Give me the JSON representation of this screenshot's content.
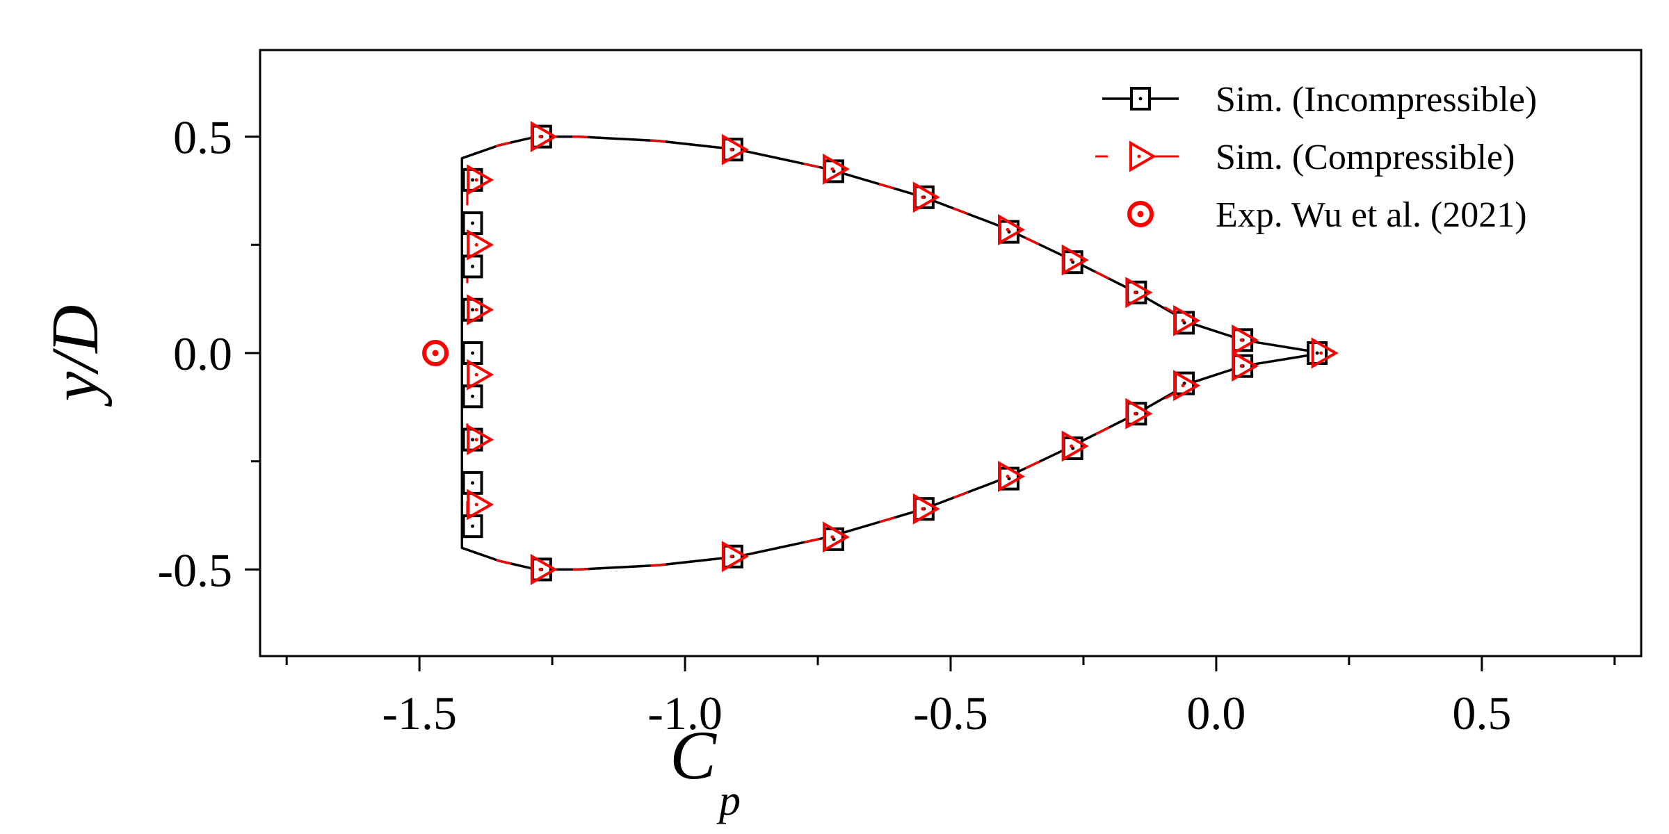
{
  "chart_data": {
    "type": "line",
    "title": "",
    "xlabel": "C",
    "xlabel_sub": "p",
    "ylabel": "y/D",
    "xlim": [
      -1.8,
      0.8
    ],
    "ylim": [
      -0.7,
      0.7
    ],
    "x_major_ticks": [
      -1.5,
      -1.0,
      -0.5,
      0.0,
      0.5
    ],
    "x_tick_labels": [
      "-1.5",
      "-1.0",
      "-0.5",
      "0.0",
      "0.5"
    ],
    "x_minor_ticks": [
      -1.75,
      -1.25,
      -0.75,
      -0.25,
      0.25,
      0.75
    ],
    "y_major_ticks": [
      0.5,
      0.0,
      -0.5
    ],
    "y_tick_labels": [
      "0.5",
      "0.0",
      "-0.5"
    ],
    "y_minor_ticks": [
      0.25,
      -0.25
    ],
    "grid": false,
    "legend_position": "top-right",
    "colors": {
      "incompressible": "#000000",
      "compressible": "#ff0000",
      "experiment": "#ff0000"
    },
    "series": [
      {
        "name": "Sim. (Incompressible)",
        "marker": "square",
        "line": "solid",
        "curve": [
          [
            0.2,
            0.0
          ],
          [
            0.05,
            0.03
          ],
          [
            -0.05,
            0.07
          ],
          [
            -0.15,
            0.14
          ],
          [
            -0.28,
            0.22
          ],
          [
            -0.4,
            0.29
          ],
          [
            -0.55,
            0.36
          ],
          [
            -0.73,
            0.425
          ],
          [
            -0.9,
            0.47
          ],
          [
            -1.05,
            0.49
          ],
          [
            -1.2,
            0.5
          ],
          [
            -1.28,
            0.5
          ],
          [
            -1.35,
            0.48
          ],
          [
            -1.42,
            0.45
          ],
          [
            -1.42,
            -0.45
          ],
          [
            -1.35,
            -0.48
          ],
          [
            -1.28,
            -0.5
          ],
          [
            -1.2,
            -0.5
          ],
          [
            -1.05,
            -0.49
          ],
          [
            -0.9,
            -0.47
          ],
          [
            -0.73,
            -0.425
          ],
          [
            -0.55,
            -0.36
          ],
          [
            -0.4,
            -0.29
          ],
          [
            -0.28,
            -0.22
          ],
          [
            -0.15,
            -0.14
          ],
          [
            -0.05,
            -0.07
          ],
          [
            0.05,
            -0.03
          ],
          [
            0.2,
            0.0
          ]
        ],
        "markers": [
          [
            0.19,
            0.0
          ],
          [
            0.05,
            0.03
          ],
          [
            0.05,
            -0.03
          ],
          [
            -0.06,
            0.07
          ],
          [
            -0.06,
            -0.07
          ],
          [
            -0.15,
            0.14
          ],
          [
            -0.15,
            -0.14
          ],
          [
            -0.27,
            0.21
          ],
          [
            -0.27,
            -0.22
          ],
          [
            -0.39,
            0.28
          ],
          [
            -0.39,
            -0.29
          ],
          [
            -0.55,
            0.36
          ],
          [
            -0.55,
            -0.36
          ],
          [
            -0.72,
            0.42
          ],
          [
            -0.72,
            -0.43
          ],
          [
            -0.91,
            0.47
          ],
          [
            -0.91,
            -0.47
          ],
          [
            -1.27,
            0.5
          ],
          [
            -1.27,
            -0.5
          ],
          [
            -1.4,
            0.4
          ],
          [
            -1.4,
            0.3
          ],
          [
            -1.4,
            0.2
          ],
          [
            -1.4,
            0.1
          ],
          [
            -1.4,
            0.0
          ],
          [
            -1.4,
            -0.1
          ],
          [
            -1.4,
            -0.2
          ],
          [
            -1.4,
            -0.3
          ],
          [
            -1.4,
            -0.4
          ]
        ]
      },
      {
        "name": "Sim. (Compressible)",
        "marker": "triangle-right",
        "line": "dashed",
        "curve": [
          [
            0.21,
            0.0
          ],
          [
            0.05,
            0.03
          ],
          [
            -0.05,
            0.075
          ],
          [
            -0.15,
            0.14
          ],
          [
            -0.28,
            0.22
          ],
          [
            -0.4,
            0.29
          ],
          [
            -0.55,
            0.36
          ],
          [
            -0.73,
            0.425
          ],
          [
            -0.9,
            0.47
          ],
          [
            -1.05,
            0.49
          ],
          [
            -1.2,
            0.5
          ],
          [
            -1.28,
            0.5
          ],
          [
            -1.35,
            0.48
          ],
          [
            -1.41,
            0.45
          ],
          [
            -1.41,
            -0.45
          ],
          [
            -1.35,
            -0.48
          ],
          [
            -1.28,
            -0.5
          ],
          [
            -1.2,
            -0.5
          ],
          [
            -1.05,
            -0.49
          ],
          [
            -0.9,
            -0.47
          ],
          [
            -0.73,
            -0.425
          ],
          [
            -0.55,
            -0.36
          ],
          [
            -0.4,
            -0.29
          ],
          [
            -0.28,
            -0.22
          ],
          [
            -0.15,
            -0.14
          ],
          [
            -0.05,
            -0.075
          ],
          [
            0.05,
            -0.03
          ],
          [
            0.21,
            0.0
          ]
        ],
        "markers": [
          [
            0.2,
            0.0
          ],
          [
            0.05,
            0.03
          ],
          [
            0.05,
            -0.03
          ],
          [
            -0.06,
            0.075
          ],
          [
            -0.06,
            -0.075
          ],
          [
            -0.15,
            0.14
          ],
          [
            -0.15,
            -0.14
          ],
          [
            -0.27,
            0.215
          ],
          [
            -0.27,
            -0.215
          ],
          [
            -0.39,
            0.285
          ],
          [
            -0.39,
            -0.285
          ],
          [
            -0.55,
            0.36
          ],
          [
            -0.55,
            -0.36
          ],
          [
            -0.72,
            0.425
          ],
          [
            -0.72,
            -0.425
          ],
          [
            -0.91,
            0.47
          ],
          [
            -0.91,
            -0.47
          ],
          [
            -1.27,
            0.5
          ],
          [
            -1.27,
            -0.5
          ],
          [
            -1.39,
            0.4
          ],
          [
            -1.39,
            0.25
          ],
          [
            -1.39,
            0.1
          ],
          [
            -1.39,
            -0.05
          ],
          [
            -1.39,
            -0.2
          ],
          [
            -1.39,
            -0.35
          ]
        ]
      },
      {
        "name": "Exp. Wu et al. (2021)",
        "marker": "circle-dot",
        "line": "none",
        "markers": [
          [
            -1.47,
            0.0
          ]
        ]
      }
    ]
  }
}
